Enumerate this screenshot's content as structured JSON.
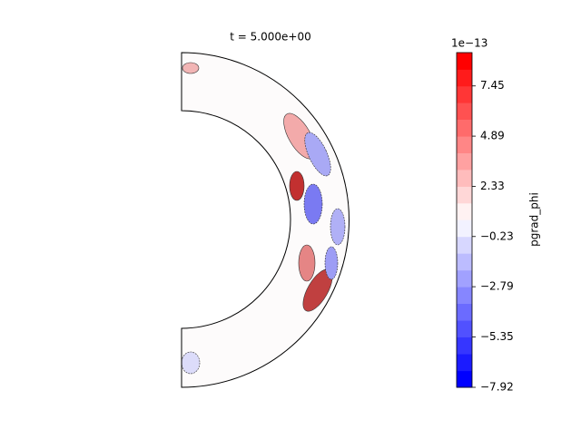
{
  "chart_data": {
    "type": "contourf",
    "title": "t = 5.000e+00",
    "colorbar_label": "pgrad_phi",
    "colorbar_offset": "1e−13",
    "colormap": "bwr",
    "ylim": [
      -7.92,
      9.15
    ],
    "levels": [
      -7.92,
      -7.07,
      -6.21,
      -5.35,
      -4.5,
      -3.64,
      -2.79,
      -1.94,
      -1.08,
      -0.23,
      0.63,
      1.48,
      2.33,
      3.19,
      4.04,
      4.89,
      5.75,
      6.6,
      7.45,
      8.3,
      9.15
    ],
    "yticks": [
      {
        "value": -7.92,
        "label": "−7.92"
      },
      {
        "value": -5.35,
        "label": "−5.35"
      },
      {
        "value": -2.79,
        "label": "−2.79"
      },
      {
        "value": -0.23,
        "label": "−0.23"
      },
      2.33,
      4.89,
      7.45
    ]
  }
}
